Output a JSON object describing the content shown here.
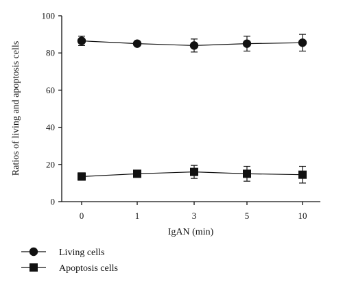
{
  "chart_data": {
    "type": "line",
    "xlabel": "IgAN (min)",
    "ylabel": "Ratios of living and apoptosis cells",
    "categories": [
      "0",
      "1",
      "3",
      "5",
      "10"
    ],
    "ylim": [
      0,
      100
    ],
    "yticks": [
      0,
      20,
      40,
      60,
      80,
      100
    ],
    "grid": false,
    "legend": "bottom-left",
    "series": [
      {
        "name": "Living cells",
        "marker": "circle",
        "values": [
          86.5,
          85,
          84,
          85,
          85.5
        ],
        "error": [
          2.5,
          1,
          3.5,
          4,
          4.5
        ]
      },
      {
        "name": "Apoptosis cells",
        "marker": "square",
        "values": [
          13.5,
          15,
          16,
          15,
          14.5
        ],
        "error": [
          2,
          1,
          3.5,
          4,
          4.5
        ]
      }
    ],
    "colors": {
      "line": "#111111",
      "marker": "#111111"
    }
  }
}
